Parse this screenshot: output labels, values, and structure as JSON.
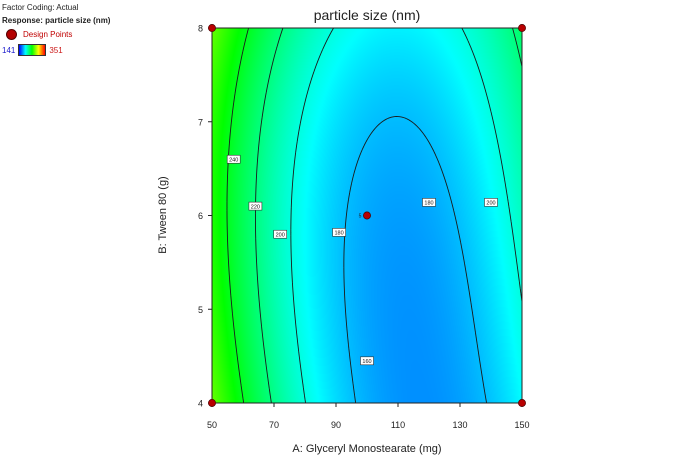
{
  "info": {
    "factor_coding": "Factor Coding: Actual",
    "response": "Response: particle size (nm)",
    "design_points_label": "Design Points",
    "scale_min": "141",
    "scale_max": "351"
  },
  "chart_data": {
    "type": "heatmap",
    "subtype": "contour",
    "title": "particle size (nm)",
    "xlabel": "A: Glyceryl Monostearate (mg)",
    "ylabel": "B: Tween 80 (g)",
    "xlim": [
      50,
      150
    ],
    "ylim": [
      4,
      8
    ],
    "xticks": [
      50,
      70,
      90,
      110,
      130,
      150
    ],
    "yticks": [
      4,
      5,
      6,
      7,
      8
    ],
    "color_scale": {
      "min": 141,
      "max": 351,
      "colors": [
        "#0000ff",
        "#00ffff",
        "#00ff00",
        "#ffff00",
        "#ff0000"
      ]
    },
    "contour_levels": [
      160,
      180,
      200,
      220,
      240
    ],
    "contour_labels": [
      {
        "value": "240",
        "x": 57,
        "y": 6.6
      },
      {
        "value": "220",
        "x": 64,
        "y": 6.1
      },
      {
        "value": "200",
        "x": 72,
        "y": 5.8
      },
      {
        "value": "180",
        "x": 91,
        "y": 5.82
      },
      {
        "value": "180",
        "x": 120,
        "y": 6.14
      },
      {
        "value": "200",
        "x": 140,
        "y": 6.14
      },
      {
        "value": "160",
        "x": 100,
        "y": 4.45
      }
    ],
    "design_points": [
      {
        "x": 50,
        "y": 8
      },
      {
        "x": 150,
        "y": 8
      },
      {
        "x": 50,
        "y": 4
      },
      {
        "x": 150,
        "y": 4
      },
      {
        "x": 100,
        "y": 6,
        "label": "5"
      }
    ]
  }
}
